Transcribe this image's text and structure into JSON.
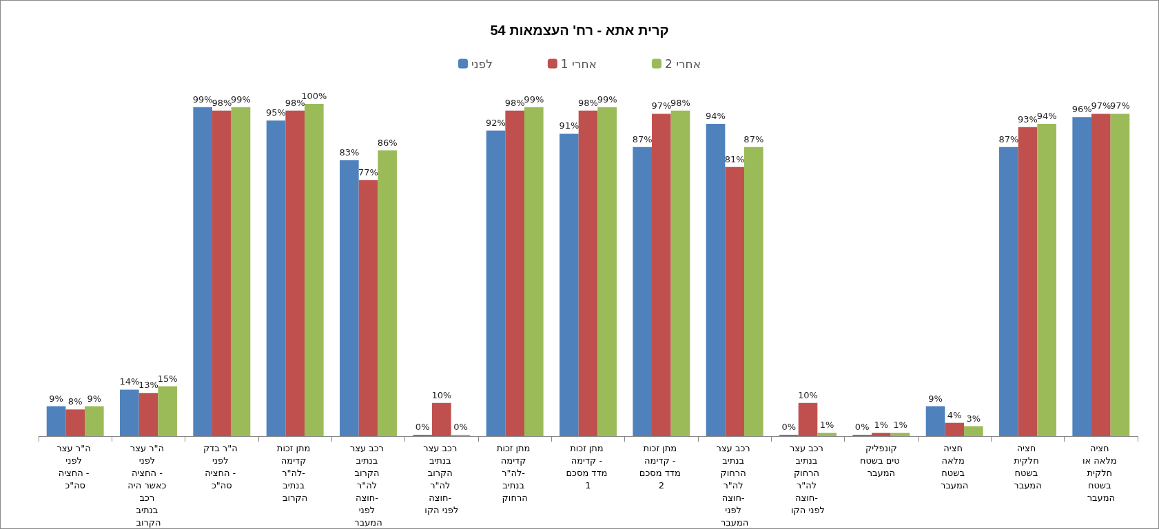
{
  "chart_data": {
    "type": "bar",
    "title": "קרית אתא - רח' העצמאות 54",
    "legend": "top",
    "categories": [
      "ה\"ר עצר לפני החציה - סה\"כ",
      "ה\"ר עצר לפני החציה - כאשר היה רכב בנתיב הקרוב",
      "ה\"ר בדק לפני החציה - סה\"כ",
      "מתן זכות קדימה לה\"ר- בנתיב הקרוב",
      "רכב עצר בנתיב הקרוב לה\"ר חוצה- לפני המעבר",
      "רכב עצר בנתיב הקרוב לה\"ר חוצה- לפני הקו",
      "מתן זכות קדימה לה\"ר- בנתיב הרחוק",
      "מתן זכות קדימה - מדד מסכם 1",
      "מתן זכות קדימה - מדד מסכם 2",
      "רכב עצר בנתיב הרחוק לה\"ר חוצה- לפני המעבר",
      "רכב עצר בנתיב הרחוק לה\"ר חוצה- לפני הקו",
      "קונפליקטים בשטח המעבר",
      "חציה מלאה בשטח המעבר",
      "חציה חלקית בשטח המעבר",
      "חציה מלאה או חלקית בשטח המעבר"
    ],
    "series": [
      {
        "name": "לפני",
        "color": "#4f81bd",
        "values": [
          9,
          14,
          99,
          95,
          83,
          0,
          92,
          91,
          87,
          94,
          0,
          0,
          9,
          87,
          96
        ],
        "value_labels": [
          "9%",
          "14%",
          "99%",
          "95%",
          "83%",
          "0%",
          "92%",
          "91%",
          "87%",
          "94%",
          "0%",
          "0%",
          "9%",
          "87%",
          "96%"
        ]
      },
      {
        "name": "אחרי 1",
        "color": "#c0504d",
        "values": [
          8,
          13,
          98,
          98,
          77,
          10,
          98,
          98,
          97,
          81,
          10,
          1,
          4,
          93,
          97
        ],
        "value_labels": [
          "8%",
          "13%",
          "98%",
          "98%",
          "77%",
          "10%",
          "98%",
          "98%",
          "97%",
          "81%",
          "10%",
          "1%",
          "4%",
          "93%",
          "97%"
        ]
      },
      {
        "name": "אחרי 2",
        "color": "#9bbb59",
        "values": [
          9,
          15,
          99,
          100,
          86,
          0,
          99,
          99,
          98,
          87,
          1,
          1,
          3,
          94,
          97
        ],
        "value_labels": [
          "9%",
          "15%",
          "99%",
          "100%",
          "86%",
          "0%",
          "99%",
          "99%",
          "98%",
          "87%",
          "1%",
          "1%",
          "3%",
          "94%",
          "97%"
        ]
      }
    ]
  }
}
